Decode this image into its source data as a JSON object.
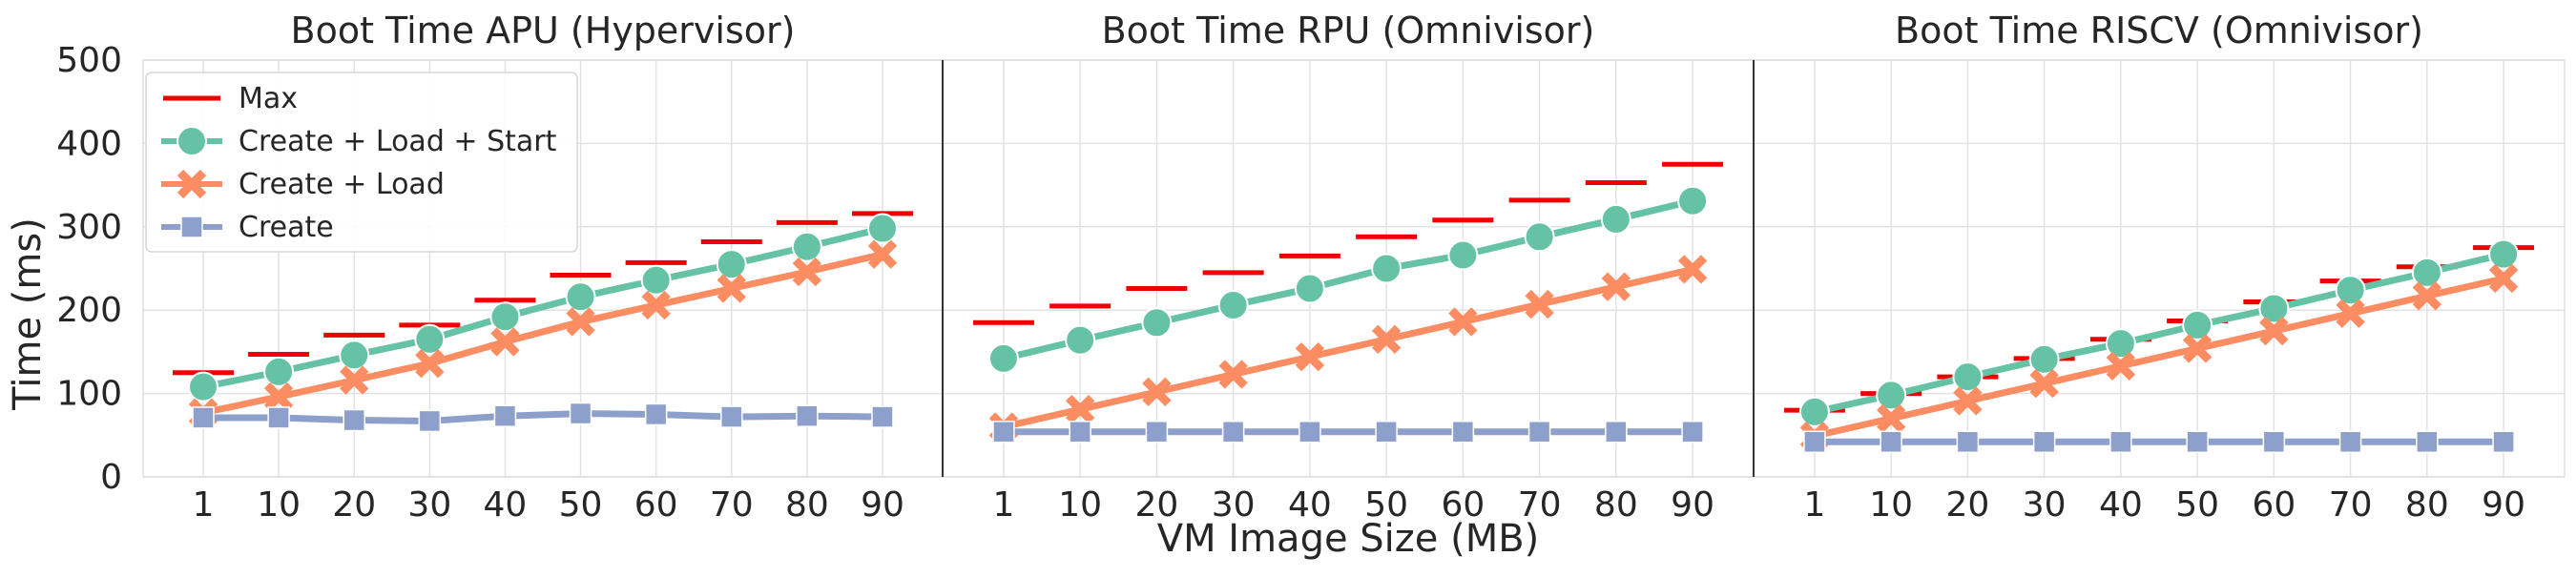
{
  "figure": {
    "ylabel": "Time (ms)",
    "xlabel": "VM Image Size (MB)"
  },
  "legend": {
    "placement": "top-left of first panel",
    "entries": [
      {
        "key": "max",
        "label": "Max",
        "marker": "dash",
        "color": "#EE0000"
      },
      {
        "key": "cls",
        "label": "Create + Load + Start",
        "marker": "circle",
        "color": "#66C2A5"
      },
      {
        "key": "cl",
        "label": "Create + Load",
        "marker": "x",
        "color": "#FC8D62"
      },
      {
        "key": "c",
        "label": "Create",
        "marker": "square",
        "color": "#8DA0CB"
      }
    ]
  },
  "chart_data": [
    {
      "type": "line",
      "title": "Boot Time APU (Hypervisor)",
      "categories": [
        "1",
        "10",
        "20",
        "30",
        "40",
        "50",
        "60",
        "70",
        "80",
        "90"
      ],
      "ylim": [
        0,
        500
      ],
      "yticks": [
        0,
        100,
        200,
        300,
        400,
        500
      ],
      "grid": true,
      "series": [
        {
          "name": "Max",
          "style": "dash",
          "color": "#EE0000",
          "values": [
            125,
            147,
            170,
            182,
            212,
            242,
            257,
            282,
            305,
            316
          ]
        },
        {
          "name": "Create + Load + Start",
          "style": "circle",
          "color": "#66C2A5",
          "values": [
            108,
            126,
            146,
            165,
            192,
            216,
            236,
            255,
            276,
            298
          ]
        },
        {
          "name": "Create + Load",
          "style": "x",
          "color": "#FC8D62",
          "values": [
            77,
            96,
            116,
            136,
            162,
            186,
            206,
            226,
            246,
            267
          ]
        },
        {
          "name": "Create",
          "style": "square",
          "color": "#8DA0CB",
          "values": [
            71,
            71,
            68,
            67,
            73,
            76,
            75,
            72,
            73,
            72
          ]
        }
      ]
    },
    {
      "type": "line",
      "title": "Boot Time RPU (Omnivisor)",
      "categories": [
        "1",
        "10",
        "20",
        "30",
        "40",
        "50",
        "60",
        "70",
        "80",
        "90"
      ],
      "ylim": [
        0,
        500
      ],
      "grid": true,
      "series": [
        {
          "name": "Max",
          "style": "dash",
          "color": "#EE0000",
          "values": [
            185,
            205,
            226,
            245,
            265,
            288,
            308,
            332,
            353,
            375
          ]
        },
        {
          "name": "Create + Load + Start",
          "style": "circle",
          "color": "#66C2A5",
          "values": [
            142,
            164,
            185,
            206,
            226,
            250,
            266,
            288,
            309,
            331
          ]
        },
        {
          "name": "Create + Load",
          "style": "x",
          "color": "#FC8D62",
          "values": [
            60,
            81,
            102,
            123,
            144,
            165,
            186,
            207,
            228,
            249
          ]
        },
        {
          "name": "Create",
          "style": "square",
          "color": "#8DA0CB",
          "values": [
            54,
            54,
            54,
            54,
            54,
            54,
            54,
            54,
            54,
            54
          ]
        }
      ]
    },
    {
      "type": "line",
      "title": "Boot Time RISCV (Omnivisor)",
      "categories": [
        "1",
        "10",
        "20",
        "30",
        "40",
        "50",
        "60",
        "70",
        "80",
        "90"
      ],
      "ylim": [
        0,
        500
      ],
      "grid": true,
      "series": [
        {
          "name": "Max",
          "style": "dash",
          "color": "#EE0000",
          "values": [
            80,
            100,
            120,
            142,
            165,
            187,
            210,
            235,
            252,
            275
          ]
        },
        {
          "name": "Create + Load + Start",
          "style": "circle",
          "color": "#66C2A5",
          "values": [
            78,
            98,
            120,
            141,
            160,
            182,
            202,
            224,
            245,
            267
          ]
        },
        {
          "name": "Create + Load",
          "style": "x",
          "color": "#FC8D62",
          "values": [
            49,
            70,
            91,
            112,
            133,
            154,
            175,
            196,
            217,
            238
          ]
        },
        {
          "name": "Create",
          "style": "square",
          "color": "#8DA0CB",
          "values": [
            42,
            42,
            42,
            42,
            42,
            42,
            42,
            42,
            42,
            42
          ]
        }
      ]
    }
  ]
}
